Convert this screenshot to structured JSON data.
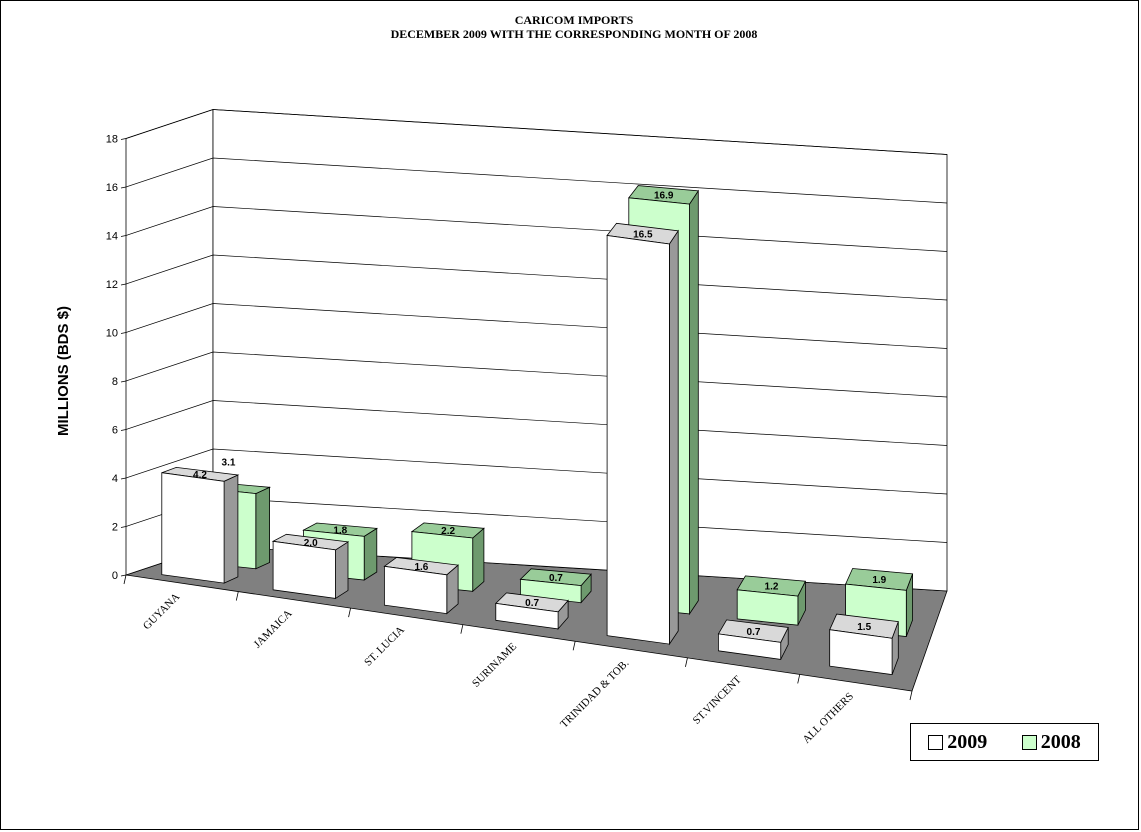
{
  "chart_data": {
    "type": "bar",
    "title": "CARICOM IMPORTS",
    "subtitle": "DECEMBER 2009 WITH THE CORRESPONDING MONTH OF 2008",
    "xlabel": "",
    "ylabel": "MILLIONS (BDS $)",
    "ylim": [
      0,
      18
    ],
    "yticks": [
      "0",
      "2",
      "4",
      "6",
      "8",
      "10",
      "12",
      "14",
      "16",
      "18"
    ],
    "grid": true,
    "legend_position": "bottom-right",
    "categories": [
      "GUYANA",
      "JAMAICA",
      "ST. LUCIA",
      "SURINAME",
      "TRINIDAD & TOB.",
      "ST.VINCENT",
      "ALL OTHERS"
    ],
    "series": [
      {
        "name": "2009",
        "values": [
          4.2,
          2.0,
          1.6,
          0.7,
          16.5,
          0.7,
          1.5
        ],
        "labels": [
          "4.2",
          "2.0",
          "1.6",
          "0.7",
          "16.5",
          "0.7",
          "1.5"
        ],
        "color": "#ffffff"
      },
      {
        "name": "2008",
        "values": [
          3.1,
          1.8,
          2.2,
          0.7,
          16.9,
          1.2,
          1.9
        ],
        "labels": [
          "3.1",
          "1.8",
          "2.2",
          "0.7",
          "16.9",
          "1.2",
          "1.9"
        ],
        "color": "#ccffcc"
      }
    ],
    "colors": {
      "floor": "#808080",
      "side_2009": "#999999",
      "top_2009": "#d9d9d9",
      "side_2008": "#6e9a6e",
      "top_2008": "#99cc99"
    }
  }
}
